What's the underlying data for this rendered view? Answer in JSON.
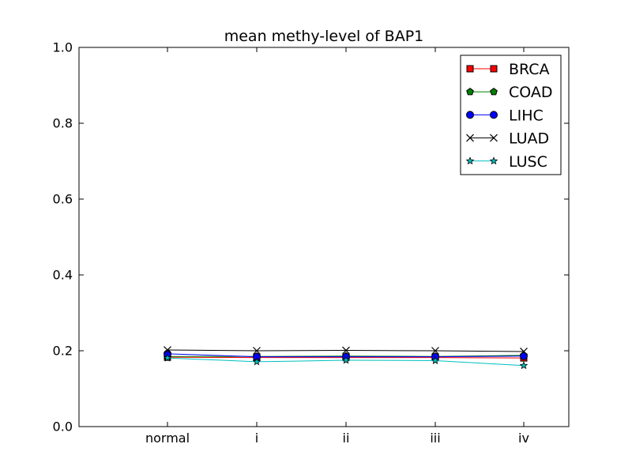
{
  "chart_data": {
    "type": "line",
    "title": "mean methy-level of BAP1",
    "xlabel": "",
    "ylabel": "",
    "categories": [
      "normal",
      "i",
      "ii",
      "iii",
      "iv"
    ],
    "ylim": [
      0.0,
      1.0
    ],
    "yticks": [
      "0.0",
      "0.2",
      "0.4",
      "0.6",
      "0.8",
      "1.0"
    ],
    "grid": false,
    "legend_position": "top-right",
    "series": [
      {
        "name": "BRCA",
        "color": "#ff0000",
        "marker": "square",
        "values": [
          0.183,
          0.182,
          0.182,
          0.182,
          0.181
        ]
      },
      {
        "name": "COAD",
        "color": "#008000",
        "marker": "pentagon",
        "values": [
          0.185,
          0.185,
          0.186,
          0.185,
          0.188
        ]
      },
      {
        "name": "LIHC",
        "color": "#0000ff",
        "marker": "circle",
        "values": [
          0.192,
          0.184,
          0.184,
          0.184,
          0.186
        ]
      },
      {
        "name": "LUAD",
        "color": "#000000",
        "marker": "x",
        "values": [
          0.202,
          0.2,
          0.201,
          0.2,
          0.198
        ]
      },
      {
        "name": "LUSC",
        "color": "#00bfbf",
        "marker": "star",
        "values": [
          0.181,
          0.171,
          0.175,
          0.174,
          0.161
        ]
      }
    ]
  }
}
